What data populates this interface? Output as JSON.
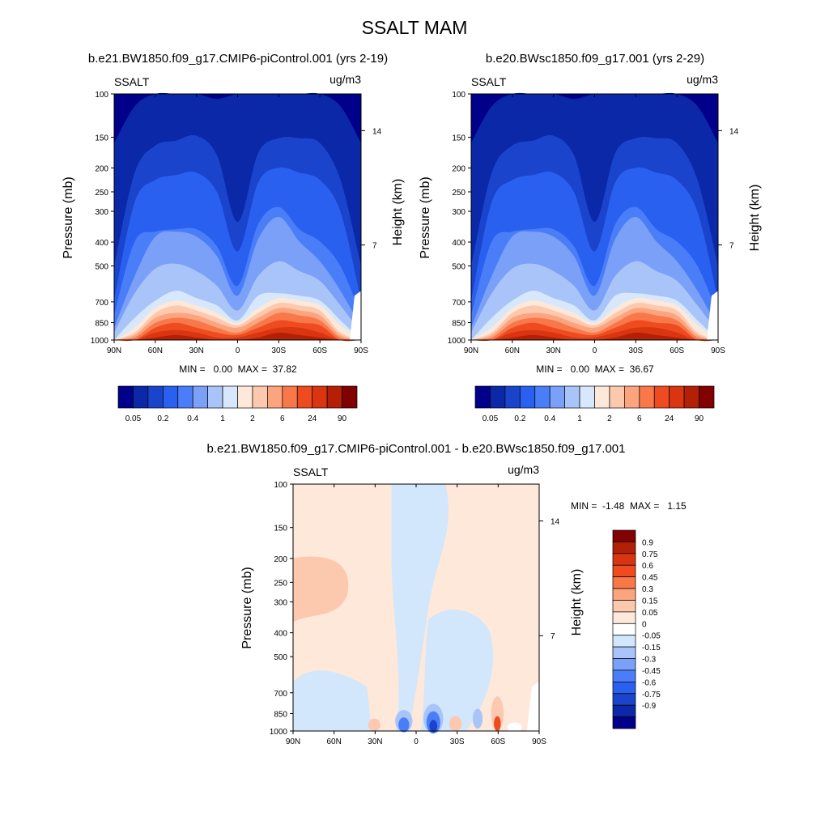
{
  "figure_title": "SSALT MAM",
  "colors": {
    "abs_palette": [
      "#00008b",
      "#0a28a8",
      "#1a44cc",
      "#2a60f0",
      "#4a7ef8",
      "#7aa0f8",
      "#a8c4f8",
      "#d8e8fc",
      "#fde8da",
      "#fcc8ae",
      "#fba47e",
      "#f8784a",
      "#ef4b20",
      "#d93510",
      "#b42005",
      "#820000"
    ],
    "diff_palette": [
      "#00008b",
      "#0a28a8",
      "#1a44cc",
      "#2a60f0",
      "#4a7ef8",
      "#7aa0f8",
      "#a8c4f8",
      "#d2e6fc",
      "#ffffff",
      "#fde8da",
      "#fcc8ae",
      "#fba47e",
      "#f8784a",
      "#ef4b20",
      "#d93510",
      "#b42005",
      "#820000"
    ]
  },
  "chart_data": [
    {
      "type": "heatmap",
      "title": "b.e21.BW1850.f09_g17.CMIP6-piControl.001 (yrs 2-19)",
      "variable": "SSALT",
      "units": "ug/m3",
      "xlabel": "",
      "ylabel": "Pressure (mb)",
      "y2label": "Height (km)",
      "x_ticks": [
        "90N",
        "60N",
        "30N",
        "0",
        "30S",
        "60S",
        "90S"
      ],
      "y_ticks": [
        "100",
        "150",
        "200",
        "250",
        "300",
        "400",
        "500",
        "700",
        "850",
        "1000"
      ],
      "y2_ticks": [
        "14",
        "7"
      ],
      "min": "0.00",
      "max": "37.82",
      "stats": "MIN =   0.00  MAX =  37.82",
      "colorbar_labels": [
        "0.05",
        "0.2",
        "0.4",
        "1",
        "2",
        "6",
        "24",
        "90"
      ]
    },
    {
      "type": "heatmap",
      "title": "b.e20.BWsc1850.f09_g17.001 (yrs 2-29)",
      "variable": "SSALT",
      "units": "ug/m3",
      "xlabel": "",
      "ylabel": "Pressure (mb)",
      "y2label": "Height (km)",
      "x_ticks": [
        "90N",
        "60N",
        "30N",
        "0",
        "30S",
        "60S",
        "90S"
      ],
      "y_ticks": [
        "100",
        "150",
        "200",
        "250",
        "300",
        "400",
        "500",
        "700",
        "850",
        "1000"
      ],
      "y2_ticks": [
        "14",
        "7"
      ],
      "min": "0.00",
      "max": "36.67",
      "stats": "MIN =   0.00  MAX =  36.67",
      "colorbar_labels": [
        "0.05",
        "0.2",
        "0.4",
        "1",
        "2",
        "6",
        "24",
        "90"
      ]
    },
    {
      "type": "heatmap",
      "title": "b.e21.BW1850.f09_g17.CMIP6-piControl.001 - b.e20.BWsc1850.f09_g17.001",
      "variable": "SSALT",
      "units": "ug/m3",
      "xlabel": "",
      "ylabel": "Pressure (mb)",
      "y2label": "Height (km)",
      "x_ticks": [
        "90N",
        "60N",
        "30N",
        "0",
        "30S",
        "60S",
        "90S"
      ],
      "y_ticks": [
        "100",
        "150",
        "200",
        "250",
        "300",
        "400",
        "500",
        "700",
        "850",
        "1000"
      ],
      "y2_ticks": [
        "14",
        "7"
      ],
      "min": "-1.48",
      "max": "1.15",
      "stats": "MIN =  -1.48  MAX =   1.15",
      "colorbar_labels": [
        "0.9",
        "0.75",
        "0.6",
        "0.45",
        "0.3",
        "0.15",
        "0.05",
        "0",
        "-0.05",
        "-0.15",
        "-0.3",
        "-0.45",
        "-0.6",
        "-0.75",
        "-0.9"
      ]
    }
  ]
}
